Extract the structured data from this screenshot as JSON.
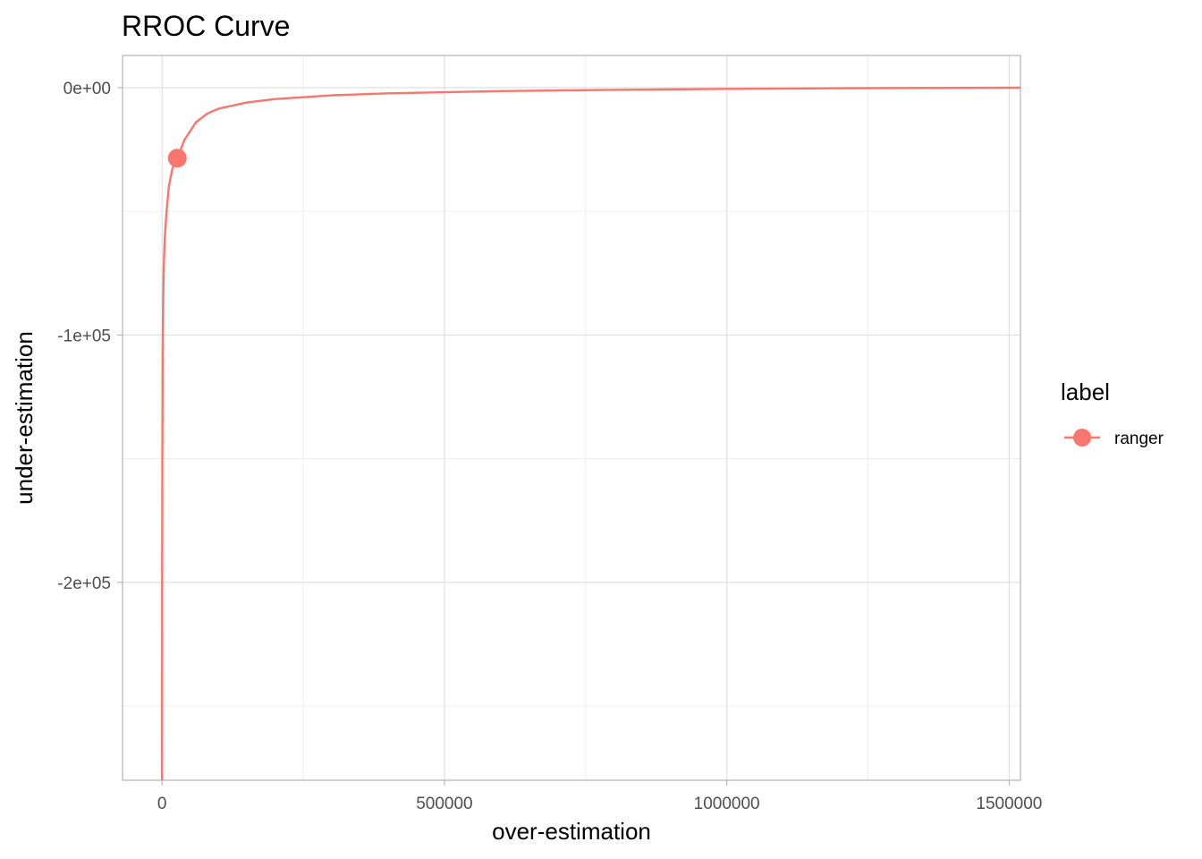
{
  "chart_data": {
    "type": "line",
    "title": "RROC Curve",
    "xlabel": "over-estimation",
    "ylabel": "under-estimation",
    "xlim": [
      -70000,
      1520000
    ],
    "ylim": [
      -280000,
      13000
    ],
    "x_ticks": [
      0,
      500000,
      1000000,
      1500000
    ],
    "x_tick_labels": [
      "0",
      "500000",
      "1000000",
      "1500000"
    ],
    "y_ticks": [
      0,
      -100000,
      -200000
    ],
    "y_tick_labels": [
      "0e+00",
      "-1e+05",
      "-2e+05"
    ],
    "grid": true,
    "legend": {
      "title": "label",
      "placement": "right"
    },
    "series": [
      {
        "name": "ranger",
        "color": "#F8766D",
        "x": [
          0,
          200,
          500,
          1000,
          2000,
          3000,
          5000,
          8000,
          12000,
          18000,
          27000,
          40000,
          60000,
          80000,
          100000,
          150000,
          200000,
          300000,
          400000,
          600000,
          800000,
          1000000,
          1200000,
          1520000
        ],
        "y": [
          -280000,
          -200000,
          -150000,
          -110000,
          -85000,
          -72000,
          -60000,
          -50000,
          -40000,
          -33000,
          -28500,
          -21000,
          -14000,
          -10500,
          -8500,
          -6000,
          -4600,
          -3100,
          -2300,
          -1400,
          -900,
          -500,
          -250,
          0
        ],
        "highlight_point": {
          "x": 27000,
          "y": -28500
        }
      }
    ]
  }
}
